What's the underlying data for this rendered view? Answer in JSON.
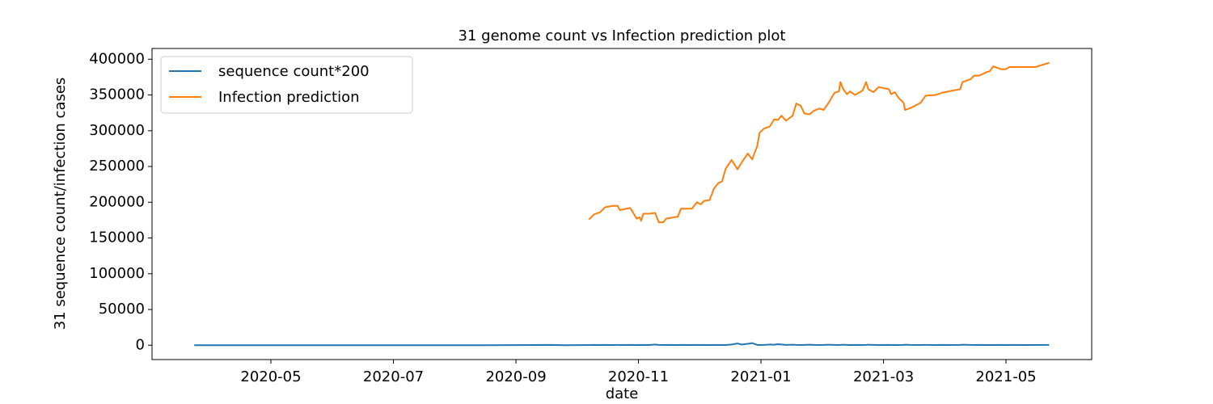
{
  "chart_data": {
    "type": "line",
    "title": "31 genome count vs Infection prediction plot",
    "x_label": "date",
    "y_label": "31 sequence count/infection cases",
    "legend": "upper left",
    "xlim": [
      2020.1716,
      2021.4499
    ],
    "xticks": [
      {
        "value": 2020.3333,
        "label": "2020-05"
      },
      {
        "value": 2020.5,
        "label": "2020-07"
      },
      {
        "value": 2020.6667,
        "label": "2020-09"
      },
      {
        "value": 2020.8333,
        "label": "2020-11"
      },
      {
        "value": 2021.0,
        "label": "2021-01"
      },
      {
        "value": 2021.1667,
        "label": "2021-03"
      },
      {
        "value": 2021.3333,
        "label": "2021-05"
      }
    ],
    "ylim": [
      -20000,
      415000
    ],
    "yticks": [
      0,
      50000,
      100000,
      150000,
      200000,
      250000,
      300000,
      350000,
      400000
    ],
    "x": [
      2020.229,
      2020.405,
      2020.625,
      2020.713,
      2020.735,
      2020.766,
      2020.773,
      2020.781,
      2020.788,
      2020.798,
      2020.805,
      2020.808,
      2020.822,
      2020.831,
      2020.835,
      2020.837,
      2020.84,
      2020.848,
      2020.856,
      2020.861,
      2020.867,
      2020.871,
      2020.887,
      2020.891,
      2020.906,
      2020.913,
      2020.918,
      2020.923,
      2020.93,
      2020.936,
      2020.942,
      2020.947,
      2020.952,
      2020.96,
      2020.968,
      2020.974,
      2020.982,
      2020.988,
      2020.995,
      2020.998,
      2021.004,
      2021.012,
      2021.018,
      2021.023,
      2021.028,
      2021.034,
      2021.043,
      2021.048,
      2021.054,
      2021.059,
      2021.066,
      2021.072,
      2021.08,
      2021.085,
      2021.092,
      2021.1,
      2021.106,
      2021.108,
      2021.112,
      2021.117,
      2021.121,
      2021.128,
      2021.138,
      2021.143,
      2021.146,
      2021.153,
      2021.16,
      2021.174,
      2021.177,
      2021.182,
      2021.187,
      2021.194,
      2021.196,
      2021.204,
      2021.217,
      2021.224,
      2021.238,
      2021.246,
      2021.26,
      2021.271,
      2021.274,
      2021.285,
      2021.29,
      2021.297,
      2021.307,
      2021.311,
      2021.316,
      2021.327,
      2021.333,
      2021.338,
      2021.373,
      2021.392
    ],
    "series": [
      {
        "name": "sequence count*200",
        "color": "#1f77b4",
        "values": [
          0,
          0,
          0,
          500,
          0,
          300,
          500,
          300,
          500,
          300,
          500,
          300,
          500,
          300,
          500,
          300,
          500,
          300,
          1000,
          500,
          300,
          500,
          300,
          500,
          300,
          500,
          300,
          500,
          300,
          500,
          300,
          500,
          300,
          1000,
          2500,
          1000,
          2000,
          3000,
          500,
          300,
          500,
          1000,
          800,
          1500,
          1000,
          500,
          800,
          500,
          300,
          500,
          800,
          500,
          300,
          500,
          800,
          500,
          300,
          500,
          800,
          500,
          300,
          500,
          300,
          500,
          800,
          500,
          300,
          500,
          300,
          500,
          300,
          500,
          800,
          500,
          300,
          500,
          300,
          500,
          300,
          500,
          800,
          500,
          300,
          500,
          300,
          500,
          300,
          500,
          300,
          500,
          300,
          500
        ]
      },
      {
        "name": "Infection prediction",
        "color": "#ff7f0e",
        "values": [
          null,
          null,
          null,
          null,
          null,
          176000,
          183000,
          186000,
          193000,
          195000,
          195000,
          189000,
          192000,
          177000,
          179000,
          174000,
          184000,
          184000,
          185000,
          172000,
          172000,
          177000,
          180000,
          191000,
          191000,
          200000,
          197000,
          202000,
          203000,
          219000,
          227000,
          229000,
          247000,
          259000,
          246000,
          256000,
          268000,
          260000,
          279000,
          297000,
          303000,
          306000,
          316000,
          315000,
          321000,
          314000,
          321000,
          338000,
          335000,
          324000,
          323000,
          328000,
          331000,
          329000,
          339000,
          353000,
          355000,
          368000,
          358000,
          351000,
          355000,
          350000,
          356000,
          368000,
          358000,
          354000,
          361000,
          358000,
          351000,
          354000,
          346000,
          339000,
          329000,
          332000,
          339000,
          349000,
          350000,
          353000,
          356000,
          358000,
          368000,
          372000,
          377000,
          377000,
          382000,
          383000,
          390000,
          386000,
          386000,
          389000,
          389000,
          395000
        ]
      }
    ]
  }
}
